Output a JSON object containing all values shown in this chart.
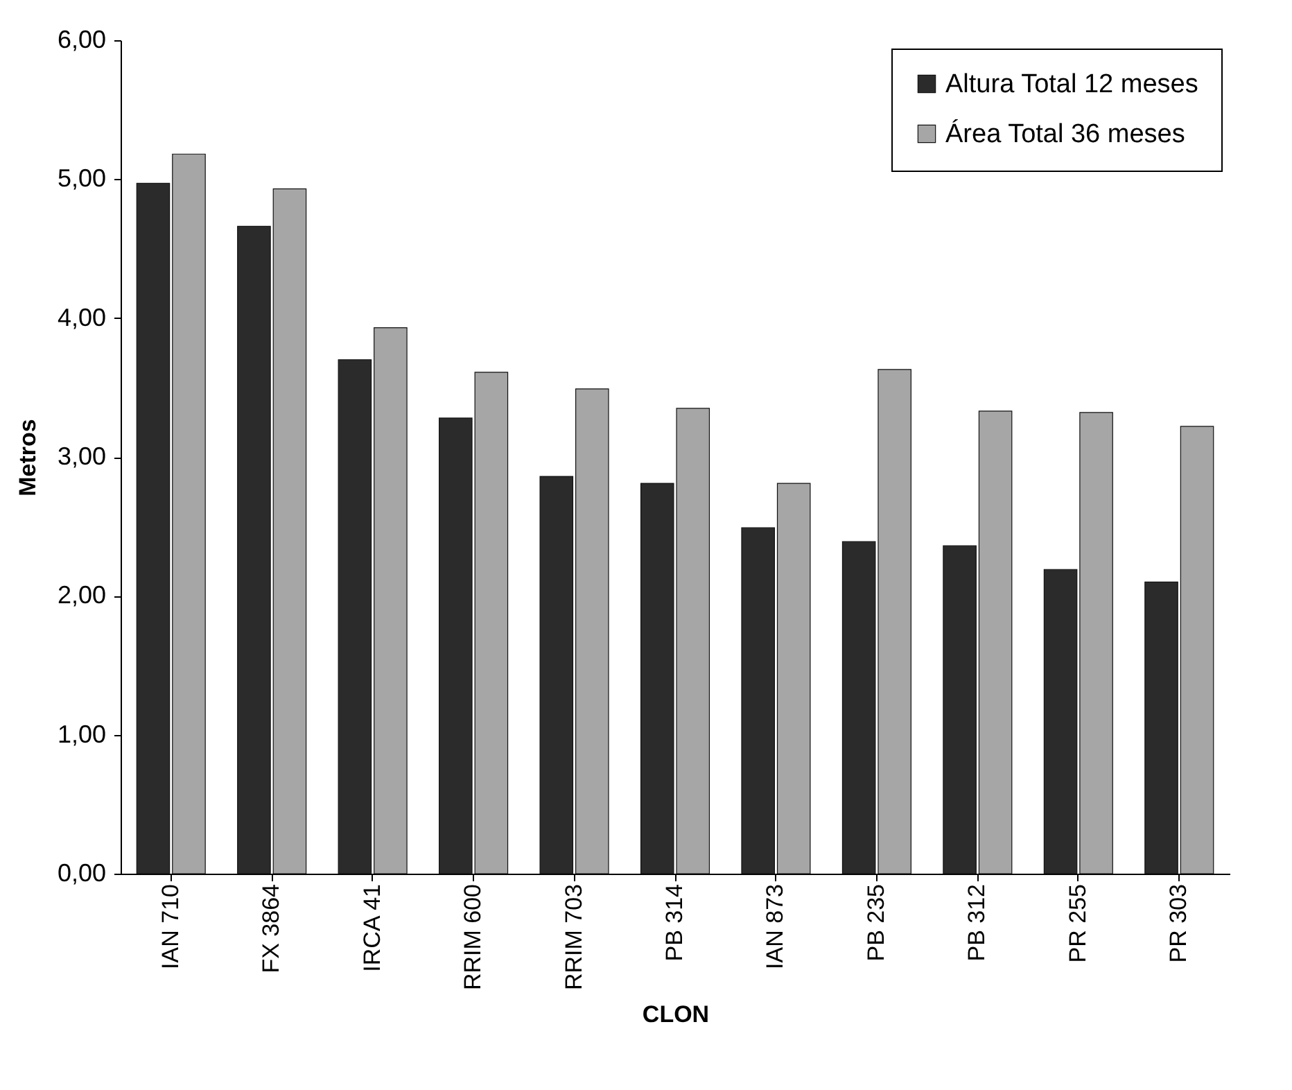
{
  "chart_data": {
    "type": "bar",
    "xlabel": "CLON",
    "ylabel": "Metros",
    "categories": [
      "IAN 710",
      "FX 3864",
      "IRCA 41",
      "RRIM 600",
      "RRIM 703",
      "PB 314",
      "IAN 873",
      "PB 235",
      "PB 312",
      "PR 255",
      "PR 303"
    ],
    "series": [
      {
        "name": "Altura Total 12 meses",
        "color": "#2b2b2b",
        "values": [
          4.97,
          4.66,
          3.7,
          3.28,
          2.86,
          2.81,
          2.49,
          2.39,
          2.36,
          2.19,
          2.1
        ]
      },
      {
        "name": "Área Total 36 meses",
        "color": "#a6a6a6",
        "values": [
          5.18,
          4.93,
          3.93,
          3.61,
          3.49,
          3.35,
          2.81,
          3.63,
          3.33,
          3.32,
          3.22
        ]
      }
    ],
    "ylim": [
      0,
      6
    ],
    "yticks": [
      {
        "value": 0,
        "label": "0,00"
      },
      {
        "value": 1,
        "label": "1,00"
      },
      {
        "value": 2,
        "label": "2,00"
      },
      {
        "value": 3,
        "label": "3,00"
      },
      {
        "value": 4,
        "label": "4,00"
      },
      {
        "value": 5,
        "label": "5,00"
      },
      {
        "value": 6,
        "label": "6,00"
      }
    ],
    "grid": false,
    "legend": "top right"
  }
}
